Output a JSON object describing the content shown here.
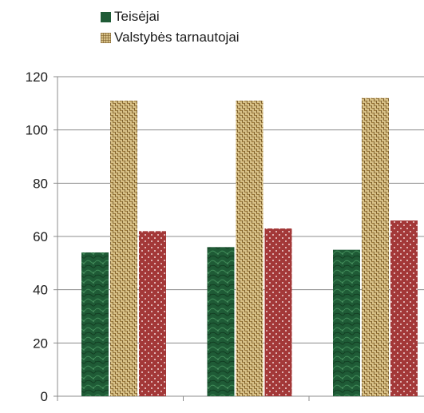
{
  "chart_data": {
    "type": "bar",
    "title": "",
    "xlabel": "",
    "ylabel": "",
    "categories": [
      "",
      "",
      ""
    ],
    "ylim": [
      0,
      120
    ],
    "yticks": [
      0,
      20,
      40,
      60,
      80,
      100,
      120
    ],
    "grid": true,
    "legend": "top-left",
    "series": [
      {
        "name": "Teisėjai",
        "values": [
          54,
          56,
          55
        ],
        "color": "#1f5b36",
        "pattern": "marble"
      },
      {
        "name": "Valstybės tarnautojai",
        "values": [
          111,
          111,
          112
        ],
        "color": "#d6bf86",
        "pattern": "burlap"
      },
      {
        "values": [
          62,
          63,
          66
        ],
        "color": "#a33838",
        "pattern": "dots"
      }
    ]
  }
}
